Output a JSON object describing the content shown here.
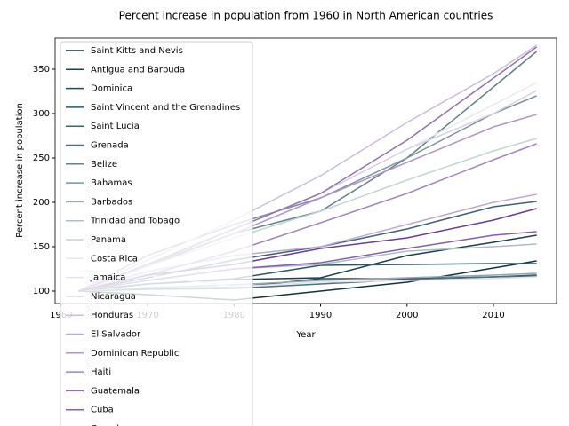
{
  "chart_data": {
    "type": "line",
    "title": "Percent increase in population from 1960 in North American countries",
    "xlabel": "Year",
    "ylabel": "Percent increase in population",
    "x": [
      1962,
      1970,
      1980,
      1990,
      2000,
      2010,
      2015
    ],
    "xlim": [
      1959.3,
      2017.3
    ],
    "xticks": [
      1960,
      1970,
      1980,
      1990,
      2000,
      2010
    ],
    "ylim": [
      86,
      385
    ],
    "yticks": [
      100,
      150,
      200,
      250,
      300,
      350
    ],
    "legend": "upper left",
    "series": [
      {
        "name": "Saint Kitts and Nevis",
        "color": "#17313f",
        "values": [
          100,
          96,
          90,
          100,
          110,
          126,
          134
        ]
      },
      {
        "name": "Antigua and Barbuda",
        "color": "#1d3e4e",
        "values": [
          100,
          108,
          113,
          115,
          140,
          155,
          163
        ]
      },
      {
        "name": "Dominica",
        "color": "#24495b",
        "values": [
          100,
          103,
          104,
          114,
          114,
          116,
          118
        ]
      },
      {
        "name": "Saint Vincent and the Grenadines",
        "color": "#2f5565",
        "values": [
          100,
          108,
          114,
          129,
          130,
          131,
          131
        ]
      },
      {
        "name": "Saint Lucia",
        "color": "#3d6270",
        "values": [
          100,
          115,
          135,
          150,
          170,
          195,
          201
        ]
      },
      {
        "name": "Grenada",
        "color": "#4e6f7d",
        "values": [
          100,
          102,
          103,
          108,
          113,
          116,
          117
        ]
      },
      {
        "name": "Belize",
        "color": "#63818c",
        "values": [
          100,
          128,
          165,
          190,
          250,
          330,
          370
        ]
      },
      {
        "name": "Bahamas",
        "color": "#7a939c",
        "values": [
          100,
          140,
          175,
          205,
          250,
          300,
          320
        ]
      },
      {
        "name": "Barbados",
        "color": "#93a8af",
        "values": [
          100,
          104,
          107,
          112,
          115,
          118,
          120
        ]
      },
      {
        "name": "Trinidad and Tobago",
        "color": "#adbec3",
        "values": [
          100,
          112,
          125,
          130,
          145,
          150,
          153
        ]
      },
      {
        "name": "Panama",
        "color": "#c6d2d5",
        "values": [
          100,
          128,
          160,
          190,
          225,
          258,
          272
        ]
      },
      {
        "name": "Costa Rica",
        "color": "#e6eaec",
        "values": [
          100,
          135,
          170,
          210,
          260,
          310,
          335
        ]
      },
      {
        "name": "Jamaica",
        "color": "#e4e2ea",
        "values": [
          123,
          118,
          105,
          110,
          112,
          114,
          116
        ]
      },
      {
        "name": "Nicaragua",
        "color": "#d9cfe1",
        "values": [
          100,
          130,
          170,
          210,
          260,
          300,
          326
        ]
      },
      {
        "name": "Honduras",
        "color": "#ccbcd9",
        "values": [
          100,
          135,
          180,
          230,
          290,
          345,
          377
        ]
      },
      {
        "name": "El Salvador",
        "color": "#bea9d0",
        "values": [
          100,
          122,
          140,
          150,
          175,
          200,
          209
        ]
      },
      {
        "name": "Dominican Republic",
        "color": "#b097c6",
        "values": [
          100,
          130,
          165,
          205,
          245,
          285,
          299
        ]
      },
      {
        "name": "Haiti",
        "color": "#a285bd",
        "values": [
          100,
          118,
          145,
          177,
          210,
          248,
          266
        ]
      },
      {
        "name": "Guatemala",
        "color": "#9372b2",
        "values": [
          100,
          130,
          170,
          210,
          270,
          340,
          375
        ]
      },
      {
        "name": "Cuba",
        "color": "#8460a8",
        "values": [
          100,
          112,
          125,
          132,
          148,
          163,
          167
        ]
      },
      {
        "name": "Canada",
        "color": "#6a3d91",
        "values": [
          100,
          118,
          130,
          148,
          160,
          180,
          193
        ]
      }
    ]
  }
}
